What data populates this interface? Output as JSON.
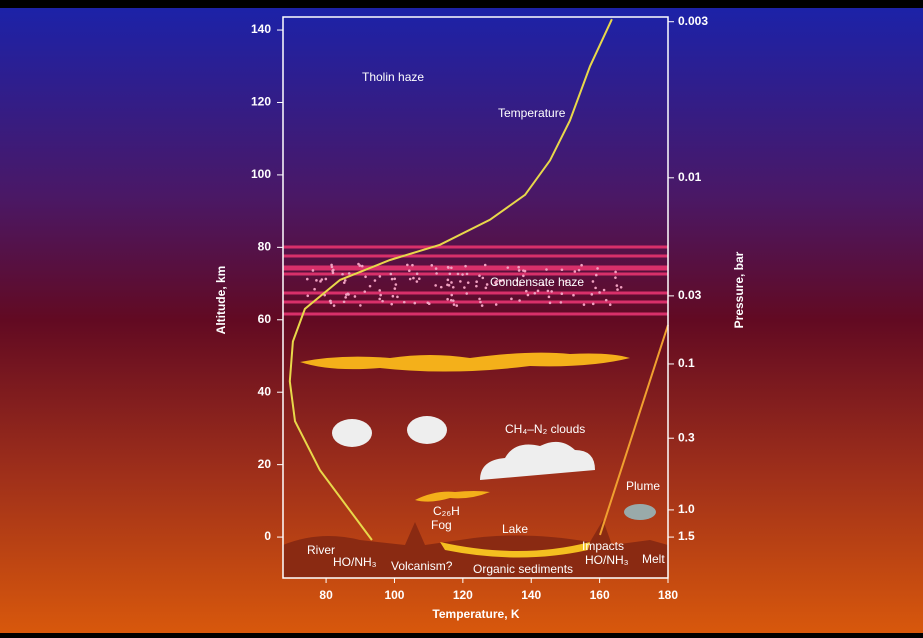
{
  "chart_data": {
    "type": "line",
    "x_label": "Temperature, K",
    "y_label": "Altitude, km",
    "xlim": [
      67.4,
      180
    ],
    "ylim": [
      -11.3,
      143.6
    ],
    "xticks": [
      80,
      100,
      120,
      140,
      160,
      180
    ],
    "yticks": [
      0,
      20,
      40,
      60,
      80,
      100,
      120,
      140
    ],
    "x": [
      93.4,
      78.2,
      70.9,
      69.4,
      70.3,
      73.8,
      84.1,
      98.7,
      113.3,
      127.9,
      138.2,
      145.5,
      151.3,
      157.2,
      163.6
    ],
    "series": [
      {
        "name": "Temperature",
        "color": "#e8d84a",
        "values": [
          -0.8,
          18.5,
          32,
          43,
          54,
          63,
          71,
          76.5,
          80.7,
          87.6,
          94.5,
          104,
          115,
          130,
          143
        ]
      }
    ],
    "pressure_axis": {
      "label": "Pressure, bar",
      "ticks": [
        {
          "altitude": 142.3,
          "label": "0.003"
        },
        {
          "altitude": 99.2,
          "label": "0.01"
        },
        {
          "altitude": 66.6,
          "label": "0.03"
        },
        {
          "altitude": 47.8,
          "label": "0.1"
        },
        {
          "altitude": 27.3,
          "label": "0.3"
        },
        {
          "altitude": 7.5,
          "label": "1.0"
        },
        {
          "altitude": 0,
          "label": "1.5"
        }
      ]
    },
    "annotations": [
      "Tholin haze",
      "Condensate haze",
      "CH₄–N₂ clouds",
      "Plume",
      "C₂₆H",
      "Fog",
      "Lake",
      "River",
      "HO/NH₃",
      "Volcanism?",
      "Organic sediments",
      "Impacts",
      "HO/NH₃",
      "Melt"
    ]
  }
}
